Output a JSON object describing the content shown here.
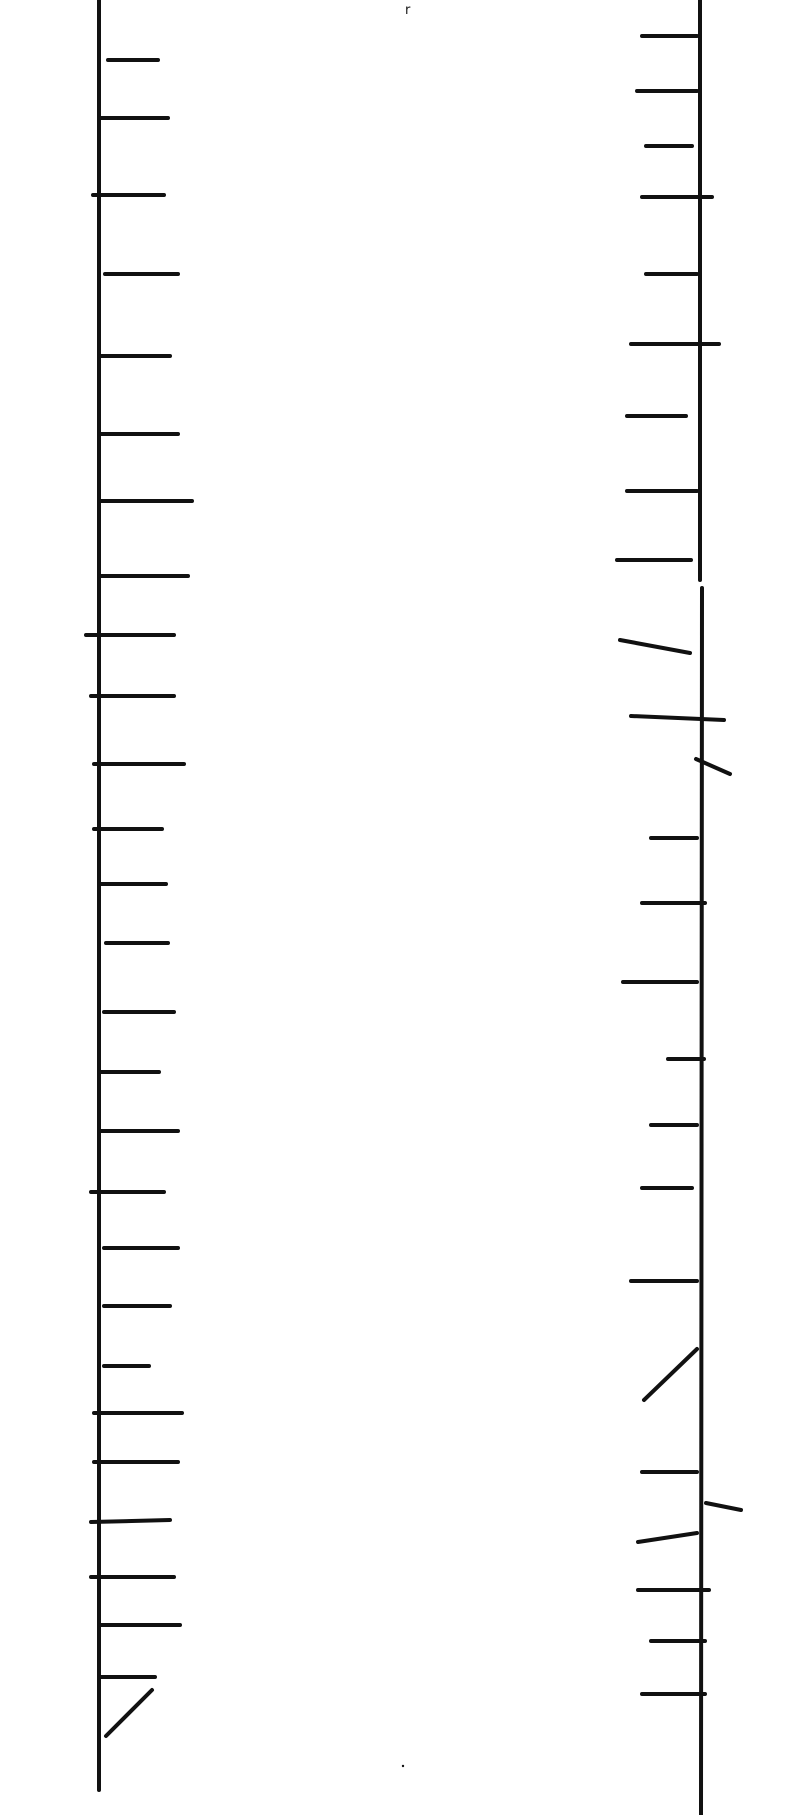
{
  "canvas": {
    "background": "#ffffff",
    "stroke_color": "#111111"
  },
  "top_mark": "r",
  "left_rail": {
    "tick_count": 28
  },
  "right_rail": {
    "tick_count": 25
  }
}
